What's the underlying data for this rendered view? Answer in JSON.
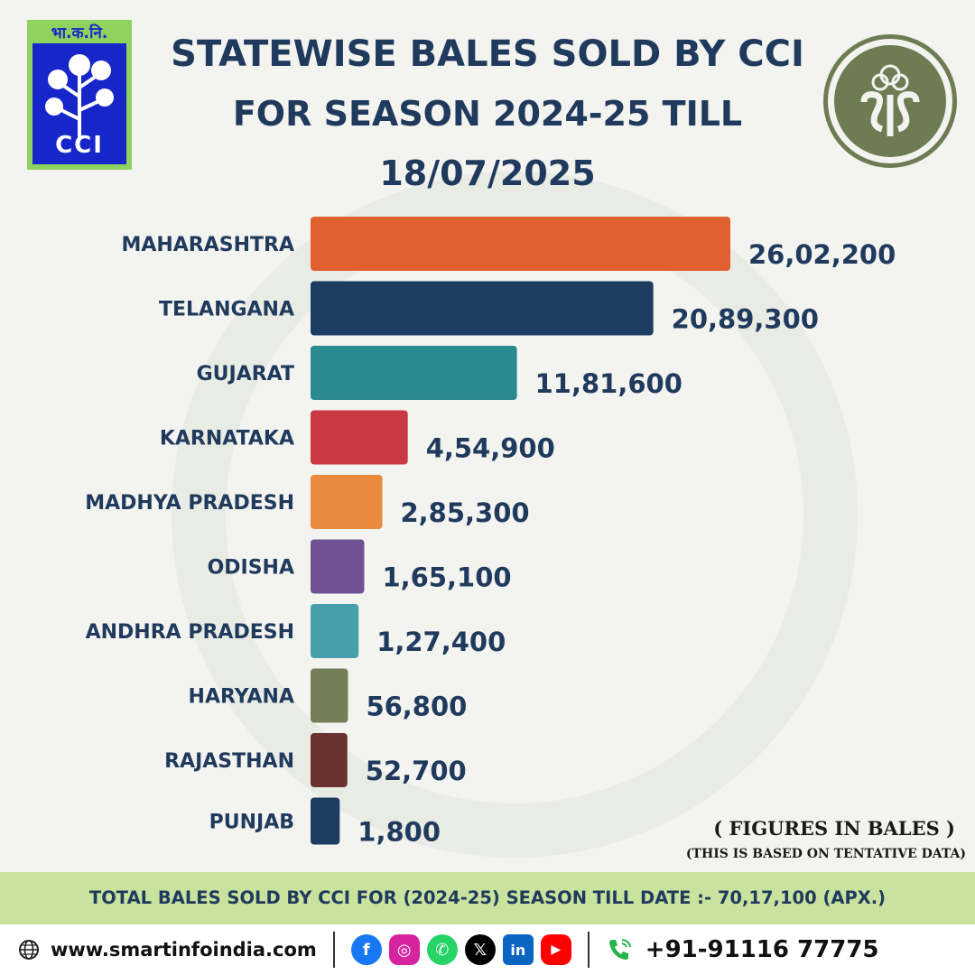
{
  "header": {
    "cci_logo_hindi": "भा.क.नि.",
    "cci_logo_text": "CCI",
    "title_line1": "STATEWISE BALES SOLD BY CCI",
    "title_line2": "FOR SEASON 2024-25 TILL",
    "title_line3": "18/07/2025",
    "sis_logo_icon": "sis-cotton-logo-icon"
  },
  "chart_data": {
    "type": "bar",
    "orientation": "horizontal",
    "categories": [
      "MAHARASHTRA",
      "TELANGANA",
      "GUJARAT",
      "KARNATAKA",
      "MADHYA PRADESH",
      "ODISHA",
      "ANDHRA PRADESH",
      "HARYANA",
      "RAJASTHAN",
      "PUNJAB"
    ],
    "values": [
      2602200,
      2089300,
      1181600,
      454900,
      285300,
      165100,
      127400,
      56800,
      52700,
      1800
    ],
    "value_labels": [
      "26,02,200",
      "20,89,300",
      "11,81,600",
      "4,54,900",
      "2,85,300",
      "1,65,100",
      "1,27,400",
      "56,800",
      "52,700",
      "1,800"
    ],
    "colors": [
      "#e0612f",
      "#1e3d63",
      "#2a8a8f",
      "#c93a45",
      "#e98a3e",
      "#6f5194",
      "#46a0ac",
      "#747f58",
      "#6a3330",
      "#1e3d63"
    ],
    "grid": false,
    "legend": "none"
  },
  "notes": {
    "figures": "( FIGURES IN BALES )",
    "tentative": "(THIS IS BASED ON TENTATIVE DATA)"
  },
  "total": "TOTAL BALES SOLD BY CCI FOR (2024-25) SEASON TILL DATE :- 70,17,100 (APX.)",
  "footer": {
    "website": "www.smartinfoindia.com",
    "phone": "+91-91116 77775",
    "social_icons": [
      "facebook-icon",
      "instagram-icon",
      "whatsapp-icon",
      "x-icon",
      "linkedin-icon",
      "youtube-icon"
    ]
  }
}
